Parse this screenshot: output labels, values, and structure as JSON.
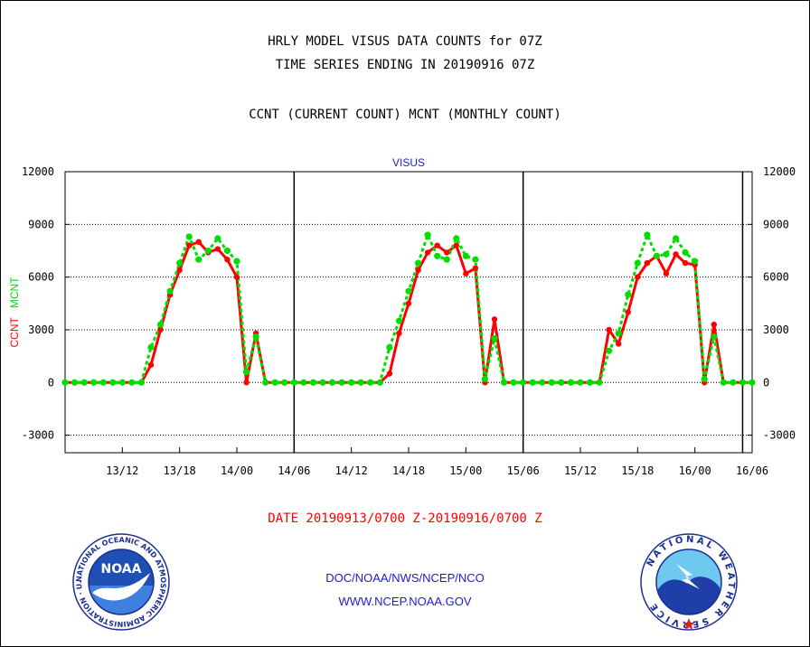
{
  "header": {
    "line1": "HRLY MODEL VISUS DATA COUNTS for 07Z",
    "line2": "TIME SERIES ENDING IN 20190916 07Z",
    "line3": "CCNT (CURRENT COUNT) MCNT (MONTHLY COUNT)"
  },
  "footer": {
    "date_range": "DATE 20190913/0700 Z-20190916/0700 Z",
    "org": "DOC/NOAA/NWS/NCEP/NCO",
    "url": "WWW.NCEP.NOAA.GOV"
  },
  "logos": {
    "noaa_text": "NOAA",
    "noaa_ring": "NATIONAL OCEANIC AND ATMOSPHERIC ADMINISTRATION · U.S. DEPARTMENT OF COMMERCE ·",
    "nws_ring": "NATIONAL WEATHER SERVICE"
  },
  "colors": {
    "ccnt": "#ff0000",
    "mcnt": "#00dd00",
    "title_blue": "#1c1ccc",
    "date_red": "#ff0000"
  },
  "chart_data": {
    "type": "line",
    "title": "VISUS",
    "ylabel_left_parts": [
      "CCNT",
      "MCNT"
    ],
    "ylim": [
      -4000,
      12000
    ],
    "yticks": [
      -3000,
      0,
      3000,
      6000,
      9000,
      12000
    ],
    "x_start_hour": 7,
    "x_end_hour": 79,
    "xtick_hours": [
      13,
      19,
      25,
      31,
      37,
      43,
      49,
      55,
      61,
      67,
      73,
      79
    ],
    "xtick_labels": [
      "13/12",
      "13/18",
      "14/00",
      "14/06",
      "14/12",
      "14/18",
      "15/00",
      "15/06",
      "15/12",
      "15/18",
      "16/00",
      "16/06"
    ],
    "day_boundary_hours": [
      31,
      55,
      78
    ],
    "grid": true,
    "series": [
      {
        "name": "CCNT",
        "values": [
          0,
          0,
          0,
          0,
          0,
          0,
          0,
          0,
          0,
          1000,
          3000,
          5000,
          6400,
          7800,
          8000,
          7400,
          7600,
          7000,
          6000,
          0,
          2800,
          0,
          0,
          0,
          0,
          0,
          0,
          0,
          0,
          0,
          0,
          0,
          0,
          0,
          500,
          2800,
          4500,
          6400,
          7400,
          7800,
          7400,
          7800,
          6200,
          6500,
          0,
          3600,
          0,
          0,
          0,
          0,
          0,
          0,
          0,
          0,
          0,
          0,
          0,
          3000,
          2200,
          4000,
          6000,
          6800,
          7200,
          6200,
          7300,
          6800,
          6700,
          0,
          3300,
          0,
          0,
          0,
          0
        ]
      },
      {
        "name": "MCNT",
        "values": [
          0,
          0,
          0,
          0,
          0,
          0,
          0,
          0,
          0,
          2000,
          3300,
          5200,
          6800,
          8300,
          7000,
          7500,
          8200,
          7500,
          6900,
          600,
          2600,
          0,
          0,
          0,
          0,
          0,
          0,
          0,
          0,
          0,
          0,
          0,
          0,
          0,
          2000,
          3500,
          5200,
          6800,
          8400,
          7200,
          7000,
          8200,
          7200,
          7000,
          200,
          2500,
          0,
          0,
          0,
          0,
          0,
          0,
          0,
          0,
          0,
          0,
          0,
          1800,
          2800,
          5000,
          6800,
          8400,
          7200,
          7300,
          8200,
          7400,
          6900,
          200,
          2600,
          0,
          0,
          0,
          0
        ]
      }
    ]
  }
}
